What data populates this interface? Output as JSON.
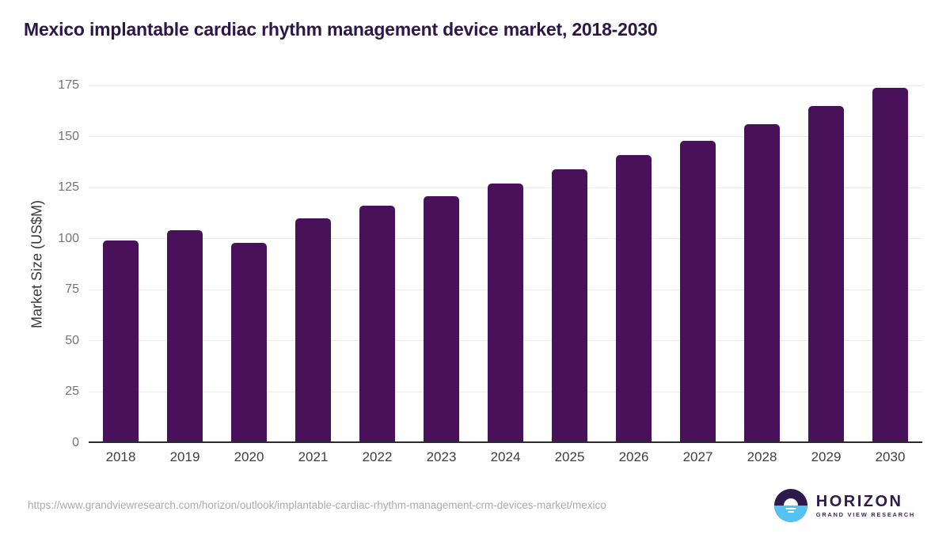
{
  "title": "Mexico implantable cardiac rhythm management device market, 2018-2030",
  "chart_data": {
    "type": "bar",
    "title": "Mexico implantable cardiac rhythm management device market, 2018-2030",
    "categories": [
      "2018",
      "2019",
      "2020",
      "2021",
      "2022",
      "2023",
      "2024",
      "2025",
      "2026",
      "2027",
      "2028",
      "2029",
      "2030"
    ],
    "values": [
      99,
      104,
      98,
      110,
      116,
      121,
      127,
      134,
      141,
      148,
      156,
      165,
      174
    ],
    "xlabel": "",
    "ylabel": "Market Size (US$M)",
    "ylim": [
      0,
      175
    ],
    "ytick_step": 25,
    "grid": true,
    "legend": "none",
    "bar_color": "#481159"
  },
  "colors": {
    "title_text": "#2c1747",
    "bar": "#481159",
    "gridline": "#ececec",
    "axis_line": "#2b2b2b",
    "y_tick_text": "#757575",
    "x_tick_text": "#3e3e3e",
    "footer_text": "#ababab",
    "logo_purple": "#2e1b4d",
    "logo_blue": "#56c2f1"
  },
  "footer": {
    "source_url": "https://www.grandviewresearch.com/horizon/outlook/implantable-cardiac-rhythm-management-crm-devices-market/mexico",
    "logo": {
      "name": "HORIZON",
      "subtext": "GRAND VIEW RESEARCH",
      "icon": "sun-over-horizon-icon"
    }
  }
}
